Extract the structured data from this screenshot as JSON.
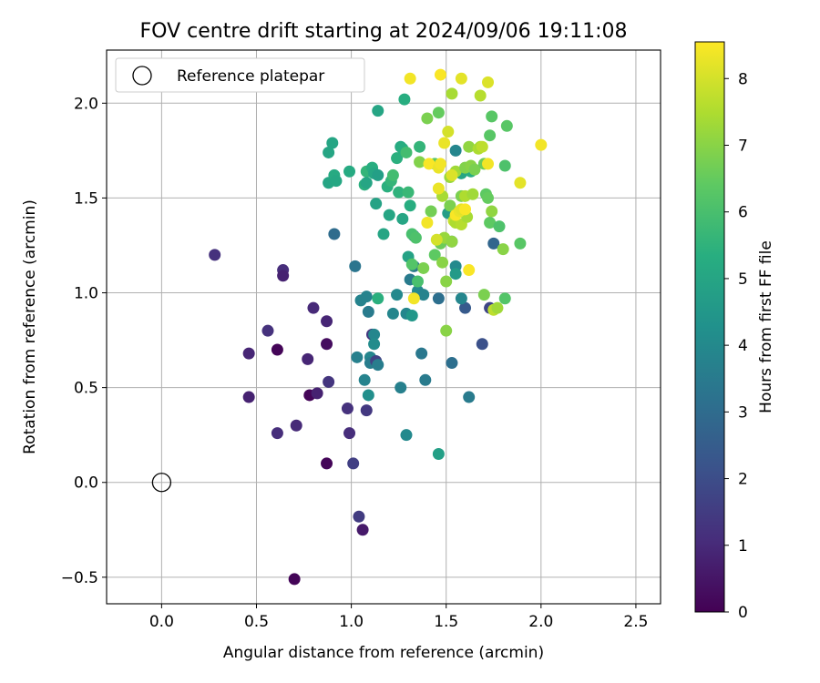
{
  "chart_data": {
    "type": "scatter",
    "title": "FOV centre drift starting at 2024/09/06 19:11:08",
    "xlabel": "Angular distance from reference (arcmin)",
    "ylabel": "Rotation from reference (arcmin)",
    "xlim": [
      -0.29,
      2.63
    ],
    "ylim": [
      -0.64,
      2.28
    ],
    "xticks": [
      0.0,
      0.5,
      1.0,
      1.5,
      2.0,
      2.5
    ],
    "xtick_labels": [
      "0.0",
      "0.5",
      "1.0",
      "1.5",
      "2.0",
      "2.5"
    ],
    "yticks": [
      -0.5,
      0.0,
      0.5,
      1.0,
      1.5,
      2.0
    ],
    "ytick_labels": [
      "−0.5",
      "0.0",
      "0.5",
      "1.0",
      "1.5",
      "2.0"
    ],
    "grid": true,
    "legend": {
      "placement": "upper-left",
      "entries": [
        "Reference platepar"
      ]
    },
    "reference_point": {
      "x": 0.0,
      "y": 0.0,
      "marker": "hollow circle"
    },
    "colorbar": {
      "label": "Hours from first FF file",
      "colormap": "viridis",
      "range": [
        0,
        8.55
      ],
      "ticks": [
        0,
        1,
        2,
        3,
        4,
        5,
        6,
        7,
        8
      ],
      "tick_labels": [
        "0",
        "1",
        "2",
        "3",
        "4",
        "5",
        "6",
        "7",
        "8"
      ]
    },
    "points": [
      {
        "x": 0.28,
        "y": 1.2,
        "h": 1.2
      },
      {
        "x": 0.46,
        "y": 0.68,
        "h": 0.9
      },
      {
        "x": 0.46,
        "y": 0.45,
        "h": 0.8
      },
      {
        "x": 0.56,
        "y": 0.8,
        "h": 1.2
      },
      {
        "x": 0.61,
        "y": 0.7,
        "h": 0.1
      },
      {
        "x": 0.61,
        "y": 0.26,
        "h": 1.1
      },
      {
        "x": 0.64,
        "y": 1.12,
        "h": 1.1
      },
      {
        "x": 0.64,
        "y": 1.09,
        "h": 0.8
      },
      {
        "x": 0.7,
        "y": -0.51,
        "h": 0.1
      },
      {
        "x": 0.71,
        "y": 0.3,
        "h": 1.0
      },
      {
        "x": 0.77,
        "y": 0.65,
        "h": 0.9
      },
      {
        "x": 0.78,
        "y": 0.46,
        "h": 0.1
      },
      {
        "x": 0.8,
        "y": 0.92,
        "h": 1.0
      },
      {
        "x": 0.82,
        "y": 0.47,
        "h": 0.8
      },
      {
        "x": 0.87,
        "y": 0.85,
        "h": 0.9
      },
      {
        "x": 0.87,
        "y": 0.73,
        "h": 0.3
      },
      {
        "x": 0.87,
        "y": 0.1,
        "h": 0.1
      },
      {
        "x": 0.88,
        "y": 0.53,
        "h": 1.3
      },
      {
        "x": 0.98,
        "y": 0.39,
        "h": 1.2
      },
      {
        "x": 0.99,
        "y": 0.26,
        "h": 1.1
      },
      {
        "x": 1.01,
        "y": 0.1,
        "h": 1.6
      },
      {
        "x": 1.04,
        "y": -0.18,
        "h": 1.5
      },
      {
        "x": 1.06,
        "y": -0.25,
        "h": 0.6
      },
      {
        "x": 1.08,
        "y": 0.38,
        "h": 1.4
      },
      {
        "x": 1.02,
        "y": 1.14,
        "h": 3.3
      },
      {
        "x": 0.91,
        "y": 1.31,
        "h": 3.0
      },
      {
        "x": 1.03,
        "y": 0.66,
        "h": 3.7
      },
      {
        "x": 1.05,
        "y": 0.96,
        "h": 3.8
      },
      {
        "x": 1.07,
        "y": 0.54,
        "h": 3.8
      },
      {
        "x": 1.09,
        "y": 0.46,
        "h": 4.2
      },
      {
        "x": 1.1,
        "y": 0.66,
        "h": 3.9
      },
      {
        "x": 1.1,
        "y": 0.63,
        "h": 3.6
      },
      {
        "x": 1.11,
        "y": 0.78,
        "h": 1.3
      },
      {
        "x": 1.12,
        "y": 0.78,
        "h": 3.9
      },
      {
        "x": 1.12,
        "y": 0.73,
        "h": 4.1
      },
      {
        "x": 1.13,
        "y": 0.64,
        "h": 1.7
      },
      {
        "x": 1.14,
        "y": 0.62,
        "h": 3.6
      },
      {
        "x": 1.09,
        "y": 0.9,
        "h": 3.5
      },
      {
        "x": 1.08,
        "y": 0.98,
        "h": 3.8
      },
      {
        "x": 1.14,
        "y": 0.97,
        "h": 5.4
      },
      {
        "x": 1.22,
        "y": 0.89,
        "h": 3.9
      },
      {
        "x": 1.24,
        "y": 0.99,
        "h": 4.0
      },
      {
        "x": 1.26,
        "y": 0.5,
        "h": 3.7
      },
      {
        "x": 1.29,
        "y": 0.25,
        "h": 4.0
      },
      {
        "x": 1.29,
        "y": 0.89,
        "h": 3.9
      },
      {
        "x": 1.32,
        "y": 0.88,
        "h": 4.5
      },
      {
        "x": 1.37,
        "y": 0.68,
        "h": 3.4
      },
      {
        "x": 1.39,
        "y": 0.54,
        "h": 3.5
      },
      {
        "x": 1.46,
        "y": 0.15,
        "h": 4.8
      },
      {
        "x": 1.53,
        "y": 0.63,
        "h": 3.1
      },
      {
        "x": 1.62,
        "y": 0.45,
        "h": 3.5
      },
      {
        "x": 1.6,
        "y": 0.92,
        "h": 2.4
      },
      {
        "x": 1.69,
        "y": 0.73,
        "h": 2.1
      },
      {
        "x": 1.73,
        "y": 0.92,
        "h": 1.8
      },
      {
        "x": 1.75,
        "y": 1.26,
        "h": 2.8
      },
      {
        "x": 1.46,
        "y": 0.97,
        "h": 3.1
      },
      {
        "x": 1.33,
        "y": 1.3,
        "h": 2.9
      },
      {
        "x": 1.3,
        "y": 1.19,
        "h": 4.9
      },
      {
        "x": 1.31,
        "y": 1.07,
        "h": 3.5
      },
      {
        "x": 1.33,
        "y": 1.14,
        "h": 3.4
      },
      {
        "x": 1.35,
        "y": 1.01,
        "h": 4.0
      },
      {
        "x": 1.38,
        "y": 0.99,
        "h": 3.8
      },
      {
        "x": 1.51,
        "y": 1.42,
        "h": 4.7
      },
      {
        "x": 1.53,
        "y": 1.27,
        "h": 3.9
      },
      {
        "x": 1.55,
        "y": 1.14,
        "h": 4.0
      },
      {
        "x": 1.55,
        "y": 1.1,
        "h": 4.6
      },
      {
        "x": 1.58,
        "y": 0.97,
        "h": 3.9
      },
      {
        "x": 1.55,
        "y": 1.75,
        "h": 3.9
      },
      {
        "x": 1.58,
        "y": 1.63,
        "h": 5.0
      },
      {
        "x": 1.63,
        "y": 1.64,
        "h": 5.3
      },
      {
        "x": 0.88,
        "y": 1.74,
        "h": 5.0
      },
      {
        "x": 0.88,
        "y": 1.58,
        "h": 5.0
      },
      {
        "x": 0.9,
        "y": 1.79,
        "h": 5.0
      },
      {
        "x": 0.91,
        "y": 1.62,
        "h": 5.2
      },
      {
        "x": 0.92,
        "y": 1.59,
        "h": 5.1
      },
      {
        "x": 0.99,
        "y": 1.64,
        "h": 5.2
      },
      {
        "x": 1.07,
        "y": 1.57,
        "h": 5.4
      },
      {
        "x": 1.08,
        "y": 1.64,
        "h": 5.6
      },
      {
        "x": 1.08,
        "y": 1.58,
        "h": 5.0
      },
      {
        "x": 1.1,
        "y": 1.64,
        "h": 5.6
      },
      {
        "x": 1.11,
        "y": 1.66,
        "h": 5.3
      },
      {
        "x": 1.12,
        "y": 1.63,
        "h": 5.1
      },
      {
        "x": 1.13,
        "y": 1.47,
        "h": 4.9
      },
      {
        "x": 1.14,
        "y": 1.96,
        "h": 5.0
      },
      {
        "x": 1.14,
        "y": 1.62,
        "h": 4.8
      },
      {
        "x": 1.17,
        "y": 1.31,
        "h": 5.0
      },
      {
        "x": 1.19,
        "y": 1.56,
        "h": 5.4
      },
      {
        "x": 1.2,
        "y": 1.41,
        "h": 5.0
      },
      {
        "x": 1.21,
        "y": 1.59,
        "h": 5.6
      },
      {
        "x": 1.22,
        "y": 1.62,
        "h": 5.9
      },
      {
        "x": 1.24,
        "y": 1.71,
        "h": 5.4
      },
      {
        "x": 1.25,
        "y": 1.53,
        "h": 5.5
      },
      {
        "x": 1.26,
        "y": 1.77,
        "h": 5.2
      },
      {
        "x": 1.27,
        "y": 1.76,
        "h": 5.3
      },
      {
        "x": 1.27,
        "y": 1.39,
        "h": 5.0
      },
      {
        "x": 1.29,
        "y": 1.74,
        "h": 5.9
      },
      {
        "x": 1.28,
        "y": 2.02,
        "h": 5.3
      },
      {
        "x": 1.3,
        "y": 1.53,
        "h": 5.7
      },
      {
        "x": 1.31,
        "y": 1.46,
        "h": 5.3
      },
      {
        "x": 1.32,
        "y": 1.31,
        "h": 6.0
      },
      {
        "x": 1.32,
        "y": 1.15,
        "h": 6.2
      },
      {
        "x": 1.34,
        "y": 1.29,
        "h": 6.1
      },
      {
        "x": 1.35,
        "y": 1.06,
        "h": 6.0
      },
      {
        "x": 1.36,
        "y": 1.77,
        "h": 5.6
      },
      {
        "x": 1.36,
        "y": 1.69,
        "h": 6.9
      },
      {
        "x": 1.38,
        "y": 1.13,
        "h": 6.8
      },
      {
        "x": 1.4,
        "y": 1.92,
        "h": 6.8
      },
      {
        "x": 1.42,
        "y": 1.43,
        "h": 6.7
      },
      {
        "x": 1.44,
        "y": 1.68,
        "h": 6.3
      },
      {
        "x": 1.44,
        "y": 1.2,
        "h": 6.4
      },
      {
        "x": 1.46,
        "y": 1.95,
        "h": 6.5
      },
      {
        "x": 1.47,
        "y": 1.26,
        "h": 6.6
      },
      {
        "x": 1.48,
        "y": 1.16,
        "h": 7.0
      },
      {
        "x": 1.48,
        "y": 1.51,
        "h": 7.4
      },
      {
        "x": 1.49,
        "y": 1.29,
        "h": 7.2
      },
      {
        "x": 1.5,
        "y": 1.06,
        "h": 7.0
      },
      {
        "x": 1.5,
        "y": 0.8,
        "h": 7.0
      },
      {
        "x": 1.52,
        "y": 1.61,
        "h": 7.2
      },
      {
        "x": 1.52,
        "y": 1.46,
        "h": 6.8
      },
      {
        "x": 1.53,
        "y": 2.05,
        "h": 7.4
      },
      {
        "x": 1.53,
        "y": 1.27,
        "h": 7.1
      },
      {
        "x": 1.54,
        "y": 1.38,
        "h": 7.8
      },
      {
        "x": 1.55,
        "y": 1.64,
        "h": 7.3
      },
      {
        "x": 1.55,
        "y": 1.37,
        "h": 7.5
      },
      {
        "x": 1.57,
        "y": 1.43,
        "h": 6.6
      },
      {
        "x": 1.58,
        "y": 1.51,
        "h": 6.8
      },
      {
        "x": 1.58,
        "y": 1.36,
        "h": 7.6
      },
      {
        "x": 1.6,
        "y": 1.66,
        "h": 6.9
      },
      {
        "x": 1.6,
        "y": 1.51,
        "h": 7.5
      },
      {
        "x": 1.61,
        "y": 1.4,
        "h": 7.4
      },
      {
        "x": 1.62,
        "y": 1.77,
        "h": 7.1
      },
      {
        "x": 1.63,
        "y": 1.67,
        "h": 7.0
      },
      {
        "x": 1.64,
        "y": 1.52,
        "h": 7.3
      },
      {
        "x": 1.65,
        "y": 1.65,
        "h": 6.8
      },
      {
        "x": 1.67,
        "y": 1.76,
        "h": 7.5
      },
      {
        "x": 1.68,
        "y": 1.77,
        "h": 7.4
      },
      {
        "x": 1.68,
        "y": 2.04,
        "h": 7.6
      },
      {
        "x": 1.69,
        "y": 1.77,
        "h": 7.7
      },
      {
        "x": 1.7,
        "y": 1.68,
        "h": 6.6
      },
      {
        "x": 1.71,
        "y": 1.52,
        "h": 6.4
      },
      {
        "x": 1.72,
        "y": 1.5,
        "h": 6.5
      },
      {
        "x": 1.73,
        "y": 1.83,
        "h": 6.3
      },
      {
        "x": 1.73,
        "y": 1.37,
        "h": 6.4
      },
      {
        "x": 1.74,
        "y": 1.43,
        "h": 7.1
      },
      {
        "x": 1.74,
        "y": 1.93,
        "h": 6.3
      },
      {
        "x": 1.75,
        "y": 0.91,
        "h": 7.7
      },
      {
        "x": 1.77,
        "y": 0.92,
        "h": 7.3
      },
      {
        "x": 1.78,
        "y": 1.35,
        "h": 6.1
      },
      {
        "x": 1.8,
        "y": 1.23,
        "h": 7.0
      },
      {
        "x": 1.81,
        "y": 1.67,
        "h": 6.1
      },
      {
        "x": 1.81,
        "y": 0.97,
        "h": 6.2
      },
      {
        "x": 1.82,
        "y": 1.88,
        "h": 6.3
      },
      {
        "x": 1.89,
        "y": 1.26,
        "h": 6.3
      },
      {
        "x": 1.7,
        "y": 0.99,
        "h": 6.8
      },
      {
        "x": 1.4,
        "y": 1.37,
        "h": 8.4
      },
      {
        "x": 1.41,
        "y": 1.68,
        "h": 8.5
      },
      {
        "x": 1.46,
        "y": 1.55,
        "h": 8.3
      },
      {
        "x": 1.46,
        "y": 1.66,
        "h": 8.3
      },
      {
        "x": 1.47,
        "y": 1.68,
        "h": 8.4
      },
      {
        "x": 1.49,
        "y": 1.79,
        "h": 8.3
      },
      {
        "x": 1.51,
        "y": 1.85,
        "h": 8.0
      },
      {
        "x": 1.53,
        "y": 1.62,
        "h": 8.1
      },
      {
        "x": 1.55,
        "y": 1.41,
        "h": 8.5
      },
      {
        "x": 1.57,
        "y": 1.43,
        "h": 8.3
      },
      {
        "x": 1.58,
        "y": 1.44,
        "h": 8.2
      },
      {
        "x": 1.6,
        "y": 1.44,
        "h": 8.5
      },
      {
        "x": 1.62,
        "y": 1.12,
        "h": 8.5
      },
      {
        "x": 1.72,
        "y": 1.68,
        "h": 8.4
      },
      {
        "x": 1.72,
        "y": 2.11,
        "h": 8.1
      },
      {
        "x": 1.58,
        "y": 2.13,
        "h": 8.2
      },
      {
        "x": 1.47,
        "y": 2.15,
        "h": 8.5
      },
      {
        "x": 1.31,
        "y": 2.13,
        "h": 8.4
      },
      {
        "x": 1.33,
        "y": 0.97,
        "h": 8.4
      },
      {
        "x": 1.89,
        "y": 1.58,
        "h": 8.2
      },
      {
        "x": 2.0,
        "y": 1.78,
        "h": 8.4
      },
      {
        "x": 1.45,
        "y": 1.28,
        "h": 8.0
      }
    ]
  }
}
